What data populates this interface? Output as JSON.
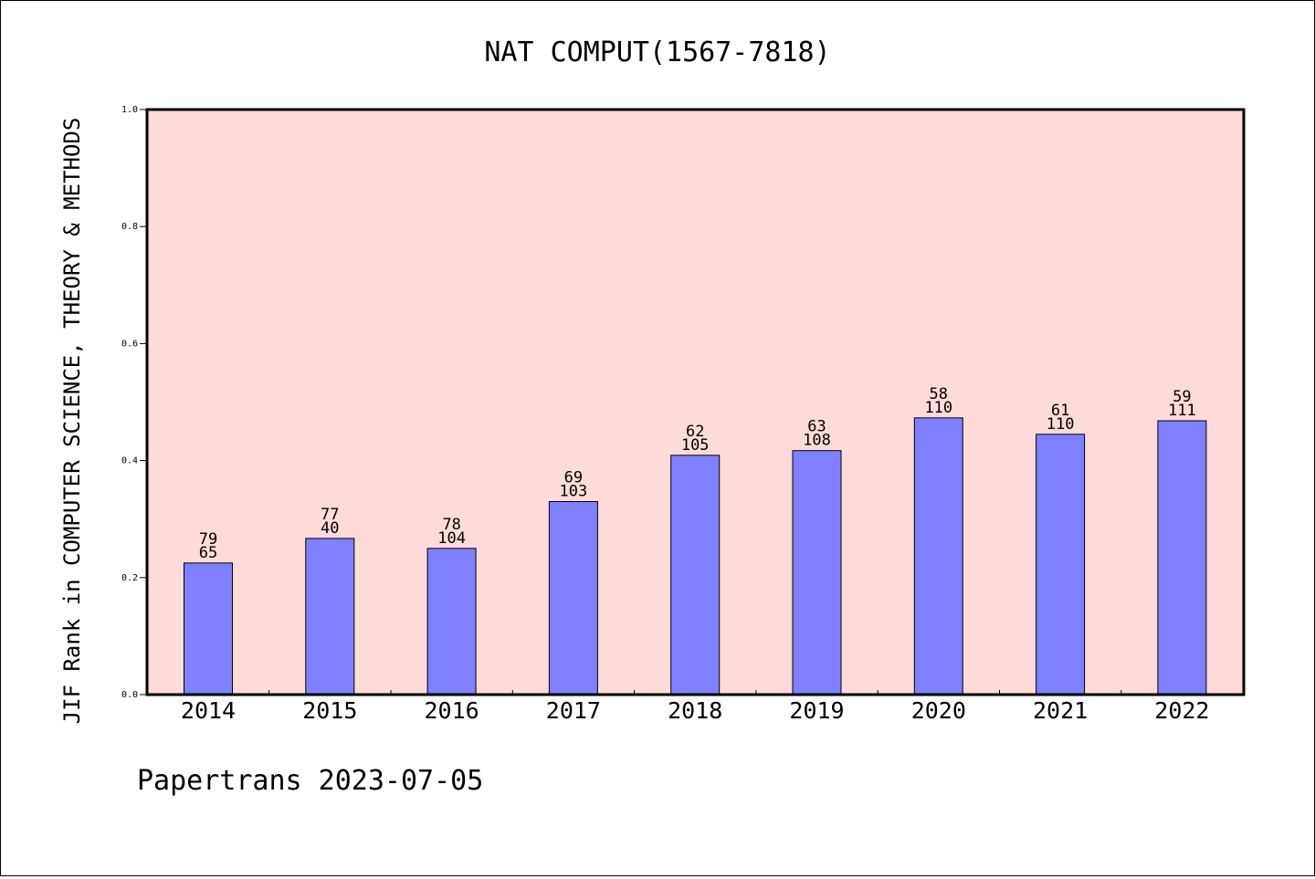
{
  "chart_data": {
    "type": "bar",
    "title": "NAT COMPUT(1567-7818)",
    "ylabel": "JIF Rank in COMPUTER SCIENCE, THEORY & METHODS",
    "xlabel": "",
    "ylim": [
      0.0,
      1.0
    ],
    "yticks": [
      "0.0",
      "0.2",
      "0.4",
      "0.6",
      "0.8",
      "1.0"
    ],
    "categories": [
      "2014",
      "2015",
      "2016",
      "2017",
      "2018",
      "2019",
      "2020",
      "2021",
      "2022"
    ],
    "values": [
      0.225,
      0.267,
      0.25,
      0.33,
      0.409,
      0.417,
      0.473,
      0.445,
      0.468
    ],
    "labels_top": [
      "79",
      "77",
      "78",
      "69",
      "62",
      "63",
      "58",
      "61",
      "59"
    ],
    "labels_bottom": [
      "65",
      "40",
      "104",
      "103",
      "105",
      "108",
      "110",
      "110",
      "111"
    ],
    "colors": {
      "plot_bg": "#fddbd8",
      "bar": "#8080ff",
      "bar_edge": "#000000"
    },
    "grid": false,
    "legend": "none"
  },
  "footer": {
    "credit": "Papertrans 2023-07-05"
  }
}
